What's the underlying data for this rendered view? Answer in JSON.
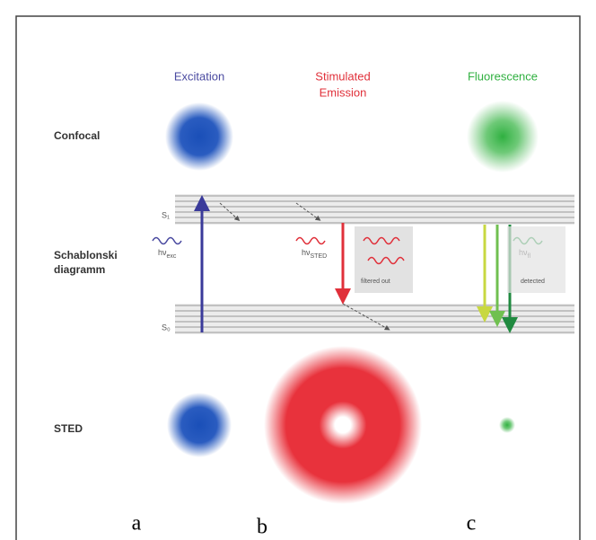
{
  "columns": {
    "excitation": "Excitation",
    "stimulated": [
      "Stimulated",
      "Emission"
    ],
    "fluorescence": "Fluorescence"
  },
  "rows": {
    "confocal": "Confocal",
    "jablonski": [
      "Schablonski",
      "diagramm"
    ],
    "sted": "STED"
  },
  "levels": {
    "upper": "S₁",
    "lower": "S₀"
  },
  "photons": {
    "excitation": {
      "symbol": "hν",
      "sub": "exc"
    },
    "stimulated": {
      "symbol": "hν",
      "sub": "STED"
    },
    "fluorescence": {
      "symbol": "hν",
      "sub": "fl"
    }
  },
  "boxes": {
    "filtered": "filtered out",
    "detected": "detected"
  },
  "panels": [
    "a",
    "b",
    "c"
  ]
}
